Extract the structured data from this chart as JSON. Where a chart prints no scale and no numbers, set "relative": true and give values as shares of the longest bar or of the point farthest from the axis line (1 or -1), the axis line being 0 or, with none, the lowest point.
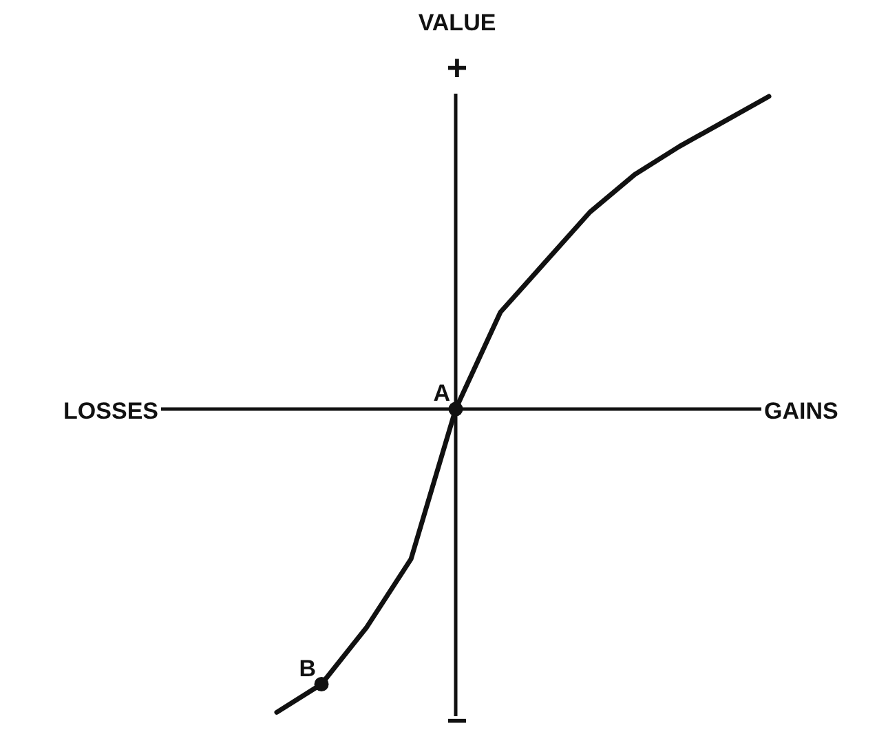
{
  "chart_data": {
    "type": "line",
    "relative": true,
    "ylabel": "VALUE",
    "xlabel": "GAINS",
    "categories": [
      null,
      null,
      null,
      null,
      null,
      null,
      null,
      null,
      null,
      null,
      null,
      null
    ],
    "series": [
      {
        "color": "#111111",
        "values": [
          -0.97,
          -0.88,
          -0.7,
          -0.48,
          0,
          0.31,
          0.47,
          0.63,
          0.75,
          0.84,
          0.92,
          1
        ]
      }
    ],
    "annotations": [
      "LOSSES",
      "+",
      "−",
      {
        "text": "A",
        "y": 0
      },
      {
        "text": "B",
        "y": -0.88
      }
    ]
  }
}
